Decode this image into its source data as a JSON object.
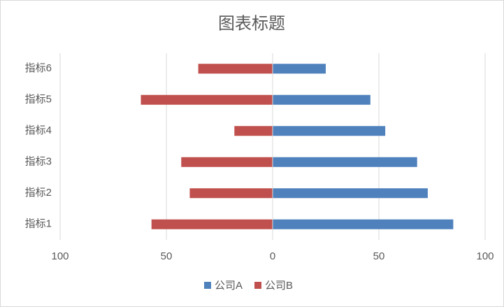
{
  "chart_data": {
    "type": "butterfly-bar",
    "title": "图表标题",
    "categories": [
      "指标1",
      "指标2",
      "指标3",
      "指标4",
      "指标5",
      "指标6"
    ],
    "series": [
      {
        "name": "公司A",
        "color": "#4f81bd",
        "values": [
          85,
          73,
          68,
          53,
          46,
          25
        ]
      },
      {
        "name": "公司B",
        "color": "#c0504d",
        "values": [
          -57,
          -39,
          -43,
          -18,
          -62,
          -35
        ]
      }
    ],
    "xlim": [
      -100,
      100
    ],
    "xticks": [
      {
        "value": -100,
        "label": "100"
      },
      {
        "value": -50,
        "label": "50"
      },
      0,
      50,
      100
    ],
    "grid": true,
    "legend": "bottom"
  }
}
